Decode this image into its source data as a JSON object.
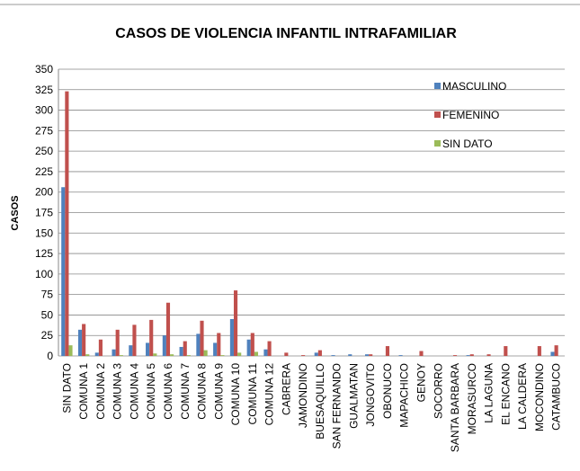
{
  "chart_data": {
    "type": "bar",
    "title": "CASOS DE VIOLENCIA INFANTIL INTRAFAMILIAR",
    "y_label": "CASOS",
    "categories": [
      "SIN DATO",
      "COMUNA 1",
      "COMUNA 2",
      "COMUNA 3",
      "COMUNA 4",
      "COMUNA 5",
      "COMUNA 6",
      "COMUNA 7",
      "COMUNA 8",
      "COMUNA 9",
      "COMUNA 10",
      "COMUNA 11",
      "COMUNA 12",
      "CABRERA",
      "JAMONDINO",
      "BUESAQUILLO",
      "SAN FERNANDO",
      "GUALMATAN",
      "JONGOVITO",
      "OBONUCO",
      "MAPACHICO",
      "GENOY",
      "SOCORRO",
      "SANTA BARBARA",
      "MORASURCO",
      "LA LAGUNA",
      "EL ENCANO",
      "LA CALDERA",
      "MOCONDINO",
      "CATAMBUCO"
    ],
    "series": [
      {
        "name": "MASCULINO",
        "color": "#4f81bd",
        "values": [
          206,
          32,
          4,
          8,
          13,
          16,
          25,
          11,
          27,
          16,
          45,
          20,
          8,
          0,
          0,
          4,
          1,
          2,
          2,
          0,
          1,
          0,
          0,
          0,
          1,
          0,
          0,
          0,
          0,
          5
        ]
      },
      {
        "name": "FEMENINO",
        "color": "#c0504d",
        "values": [
          323,
          39,
          20,
          32,
          38,
          44,
          65,
          18,
          43,
          28,
          80,
          28,
          18,
          4,
          1,
          7,
          0,
          0,
          2,
          12,
          0,
          6,
          0,
          1,
          2,
          2,
          12,
          0,
          12,
          13
        ]
      },
      {
        "name": "SIN DATO",
        "color": "#9bbb59",
        "values": [
          13,
          2,
          0,
          1,
          0,
          3,
          2,
          1,
          7,
          1,
          4,
          5,
          0,
          0,
          0,
          0,
          0,
          0,
          0,
          0,
          0,
          0,
          0,
          0,
          0,
          0,
          0,
          0,
          0,
          0
        ]
      }
    ],
    "ylim": [
      0,
      350
    ],
    "yticks": [
      0,
      25,
      50,
      75,
      100,
      125,
      150,
      175,
      200,
      225,
      250,
      275,
      300,
      325,
      350
    ],
    "grid": true,
    "legend": "upper right"
  }
}
